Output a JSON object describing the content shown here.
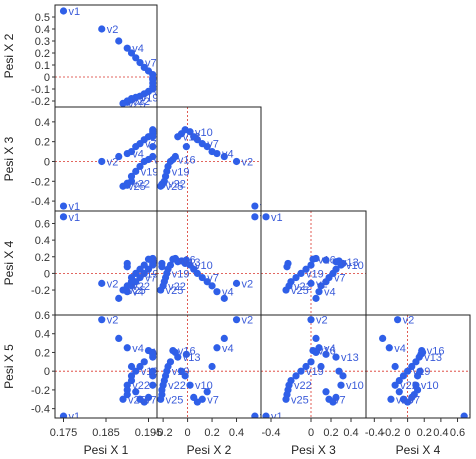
{
  "chart_data": {
    "type": "scatter",
    "variables": [
      "Pesi X 1",
      "Pesi X 2",
      "Pesi X 3",
      "Pesi X 4",
      "Pesi X 5"
    ],
    "ranges": {
      "Pesi X 1": [
        0.173,
        0.197
      ],
      "Pesi X 2": [
        -0.25,
        0.6
      ],
      "Pesi X 3": [
        -0.5,
        0.55
      ],
      "Pesi X 4": [
        -0.5,
        0.75
      ],
      "Pesi X 5": [
        -0.5,
        0.6
      ]
    },
    "ticks": {
      "Pesi X 1": [
        0.175,
        0.185,
        0.195
      ],
      "Pesi X 2": [
        -0.2,
        0,
        0.2,
        0.4
      ],
      "Pesi X 3": [
        -0.4,
        0,
        0.2,
        0.4
      ],
      "Pesi X 4": [
        -0.4,
        -0.2,
        0,
        0.2,
        0.4,
        0.6
      ],
      "Pesi X 5": [
        -0.4,
        -0.2,
        0,
        0.2,
        0.4,
        0.6
      ]
    },
    "tick_labels": {
      "Pesi X 1": [
        "0.175",
        "0.185",
        "0.195"
      ],
      "Pesi X 2": [
        "-0.2",
        "0",
        "0.2",
        "0.4"
      ],
      "Pesi X 3": [
        "-0.4",
        "0",
        "0.2",
        "0.4"
      ],
      "Pesi X 4": [
        "-0.4",
        "-0.2",
        "0",
        "0.2",
        "0.4",
        "0.6"
      ],
      "Pesi X 5": [
        "-0.4",
        "-0.2",
        "0",
        "0.2",
        "0.4",
        "0.6"
      ]
    },
    "ytick_labels": {
      "Pesi X 2": [
        "0.5",
        "0.4",
        "0.3",
        "0.2",
        "0.1",
        "0",
        "-0.1",
        "-0.2"
      ],
      "Pesi X 3": [
        "0.4",
        "0.2",
        "0",
        "-0.2",
        "-0.4"
      ],
      "Pesi X 4": [
        "0.6",
        "0.4",
        "0.2",
        "0",
        "-0.2"
      ],
      "Pesi X 5": [
        "0.6",
        "0.4",
        "0.2",
        "0",
        "-0.2",
        "-0.4"
      ]
    },
    "ytick_values": {
      "Pesi X 2": [
        0.5,
        0.4,
        0.3,
        0.2,
        0.1,
        0,
        -0.1,
        -0.2
      ],
      "Pesi X 3": [
        0.4,
        0.2,
        0,
        -0.2,
        -0.4
      ],
      "Pesi X 4": [
        0.6,
        0.4,
        0.2,
        0,
        -0.2
      ],
      "Pesi X 5": [
        0.6,
        0.4,
        0.2,
        0,
        -0.2,
        -0.4
      ]
    },
    "grid": false,
    "reference_lines": "zero",
    "points": [
      {
        "label": "v1",
        "values": [
          0.175,
          0.55,
          -0.45,
          0.68,
          -0.48
        ]
      },
      {
        "label": "v2",
        "values": [
          0.184,
          0.4,
          0.0,
          -0.12,
          0.55
        ]
      },
      {
        "label": "v3",
        "values": [
          0.188,
          0.3,
          0.05,
          -0.3,
          0.35
        ]
      },
      {
        "label": "v4",
        "values": [
          0.19,
          0.24,
          0.08,
          -0.22,
          0.25
        ]
      },
      {
        "label": "v5",
        "values": [
          0.191,
          0.2,
          0.1,
          -0.15,
          0.05
        ]
      },
      {
        "label": "v6",
        "values": [
          0.192,
          0.16,
          0.15,
          -0.1,
          -0.22
        ]
      },
      {
        "label": "v7",
        "values": [
          0.193,
          0.12,
          0.18,
          -0.05,
          -0.3
        ]
      },
      {
        "label": "v8",
        "values": [
          0.194,
          0.08,
          0.22,
          0.0,
          -0.33
        ]
      },
      {
        "label": "v9",
        "values": [
          0.195,
          0.05,
          0.25,
          0.05,
          -0.28
        ]
      },
      {
        "label": "v10",
        "values": [
          0.196,
          0.02,
          0.3,
          0.1,
          -0.15
        ]
      },
      {
        "label": "v11",
        "values": [
          0.196,
          -0.02,
          0.32,
          0.12,
          -0.05
        ]
      },
      {
        "label": "v12",
        "values": [
          0.196,
          -0.05,
          0.28,
          0.15,
          0.0
        ]
      },
      {
        "label": "v13",
        "values": [
          0.196,
          -0.08,
          0.25,
          0.14,
          0.15
        ]
      },
      {
        "label": "v14",
        "values": [
          0.196,
          -0.01,
          0.15,
          0.16,
          0.18
        ]
      },
      {
        "label": "v15",
        "values": [
          0.196,
          -0.1,
          0.05,
          0.18,
          0.2
        ]
      },
      {
        "label": "v16",
        "values": [
          0.195,
          -0.12,
          0.02,
          0.17,
          0.22
        ]
      },
      {
        "label": "v17",
        "values": [
          0.194,
          -0.14,
          0.0,
          0.1,
          0.1
        ]
      },
      {
        "label": "v18",
        "values": [
          0.193,
          -0.16,
          -0.05,
          0.05,
          0.05
        ]
      },
      {
        "label": "v19",
        "values": [
          0.192,
          -0.17,
          -0.1,
          0.0,
          0.0
        ]
      },
      {
        "label": "v20",
        "values": [
          0.191,
          -0.18,
          -0.15,
          -0.05,
          -0.05
        ]
      },
      {
        "label": "v21",
        "values": [
          0.191,
          -0.19,
          -0.2,
          -0.1,
          -0.1
        ]
      },
      {
        "label": "v22",
        "values": [
          0.19,
          -0.2,
          -0.22,
          -0.15,
          -0.15
        ]
      },
      {
        "label": "v23",
        "values": [
          0.19,
          -0.21,
          -0.23,
          0.12,
          -0.2
        ]
      },
      {
        "label": "v24",
        "values": [
          0.19,
          -0.21,
          -0.24,
          0.08,
          -0.25
        ]
      },
      {
        "label": "v25",
        "values": [
          0.189,
          -0.22,
          -0.25,
          -0.2,
          -0.3
        ]
      }
    ]
  }
}
